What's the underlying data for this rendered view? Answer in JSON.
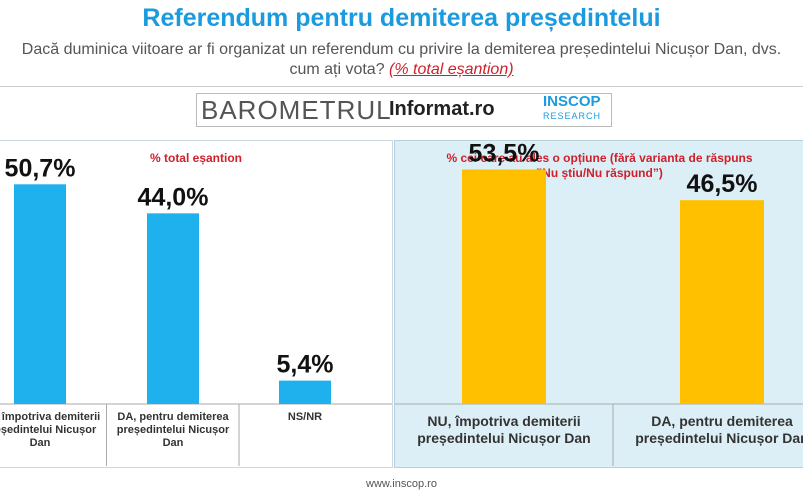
{
  "header": {
    "title": "Referendum pentru demiterea președintelui",
    "subtitle_line1": "Dacă duminica viitoare ar fi organizat un referendum cu privire la demiterea președintelui Nicușor Dan, dvs.",
    "subtitle_line2": "cum ați vota?",
    "subtitle_highlight": "(% total eșantion)"
  },
  "logos": {
    "barometrul": "BAROMETRUL",
    "informat": "Informat.ro",
    "inscop": "INSCOP",
    "inscop_sub": "RESEARCH"
  },
  "colors": {
    "blue": "#1fb0ee",
    "yellow": "#ffc000",
    "title": "#1a9be0",
    "note": "#d0202a"
  },
  "chart_data": [
    {
      "type": "bar",
      "title": "% total eșantion",
      "categories": [
        "NU, împotriva demiterii președintelui Nicușor Dan",
        "DA, pentru demiterea președintelui Nicușor Dan",
        "NS/NR"
      ],
      "category_lines": [
        [
          "NU, împotriva demiterii",
          "președintelui Nicușor",
          "Dan"
        ],
        [
          "DA, pentru demiterea",
          "președintelui Nicușor",
          "Dan"
        ],
        [
          "NS/NR"
        ]
      ],
      "values": [
        50.7,
        44.0,
        5.4
      ],
      "value_labels": [
        "50,7%",
        "44,0%",
        "5,4%"
      ],
      "ylim": [
        0,
        60
      ],
      "grid": false
    },
    {
      "type": "bar",
      "title": "% cei care au ales o opțiune (fără varianta de răspuns ”Nu știu/Nu răspund”)",
      "title_line1": "% cei care au ales o opțiune (fără varianta de răspuns",
      "title_line2": "”Nu știu/Nu răspund”)",
      "categories": [
        "NU, împotriva demiterii președintelui Nicușor Dan",
        "DA, pentru demiterea președintelui Nicușor Dan"
      ],
      "category_lines": [
        [
          "NU, împotriva demiterii",
          "președintelui Nicușor Dan"
        ],
        [
          "DA, pentru demiterea",
          "președintelui Nicușor Dan"
        ]
      ],
      "values": [
        53.5,
        46.5
      ],
      "value_labels": [
        "53,5%",
        "46,5%"
      ],
      "ylim": [
        0,
        60
      ],
      "grid": false
    }
  ],
  "footer": {
    "url": "www.inscop.ro"
  }
}
